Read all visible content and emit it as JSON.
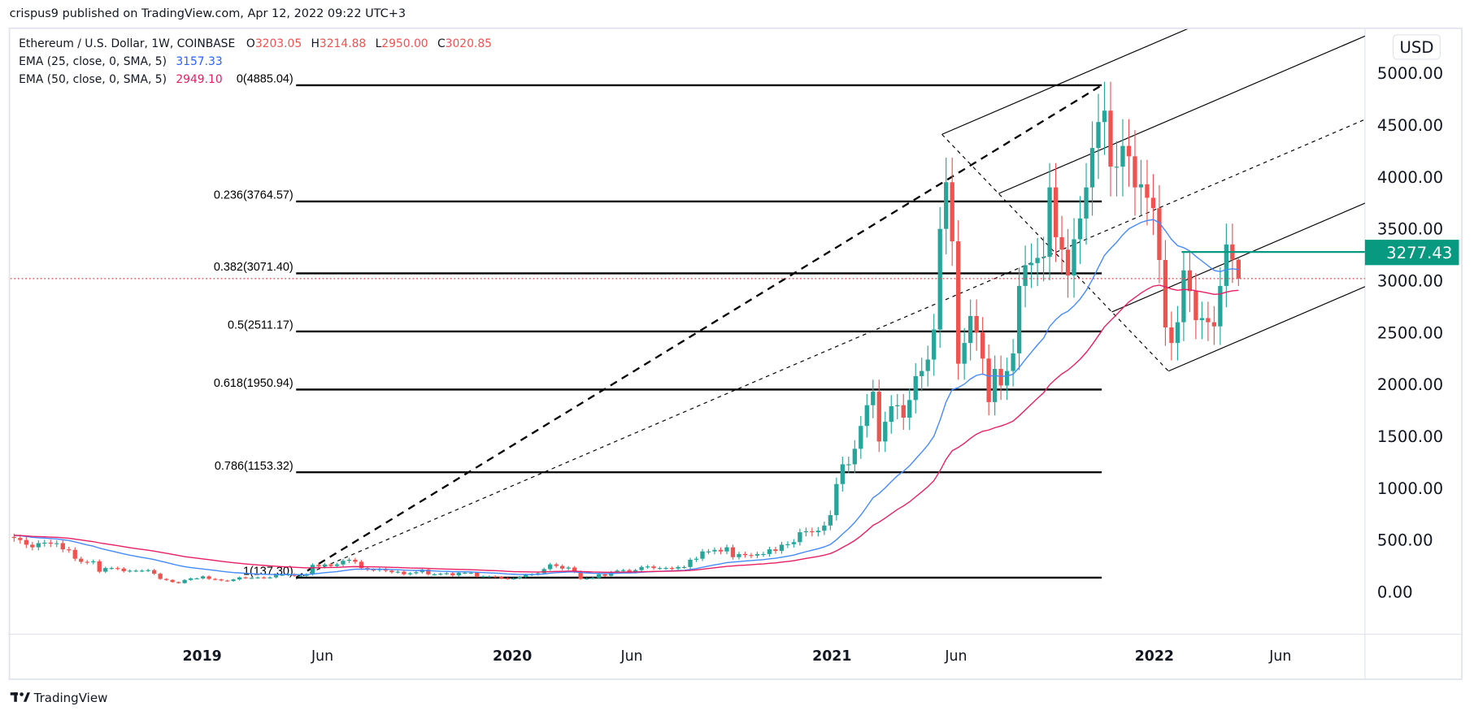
{
  "header": {
    "published": "crispus9 published on TradingView.com, Apr 12, 2022 09:22 UTC+3"
  },
  "legend": {
    "symbol": "Ethereum / U.S. Dollar, 1W, COINBASE",
    "o_label": "O",
    "o": "3203.05",
    "h_label": "H",
    "h": "3214.88",
    "l_label": "L",
    "l": "2950.00",
    "c_label": "C",
    "c": "3020.85",
    "ema25_label": "EMA (25, close, 0, SMA, 5)",
    "ema25_value": "3157.33",
    "ema50_label": "EMA (50, close, 0, SMA, 5)",
    "ema50_value": "2949.10"
  },
  "fib_levels": [
    {
      "label": "0(4885.04)",
      "price": 4885.04
    },
    {
      "label": "0.236(3764.57)",
      "price": 3764.57
    },
    {
      "label": "0.382(3071.40)",
      "price": 3071.4
    },
    {
      "label": "0.5(2511.17)",
      "price": 2511.17
    },
    {
      "label": "0.618(1950.94)",
      "price": 1950.94
    },
    {
      "label": "0.786(1153.32)",
      "price": 1153.32
    },
    {
      "label": "1(137.30)",
      "price": 137.3
    }
  ],
  "price_axis": {
    "currency": "USD",
    "ticks": [
      "5000.00",
      "4500.00",
      "4000.00",
      "3500.00",
      "3000.00",
      "2500.00",
      "2000.00",
      "1500.00",
      "1000.00",
      "500.00",
      "0.00"
    ],
    "highlight_label": "3277.43",
    "highlight_price": 3277.43,
    "last_price": 3020.85
  },
  "time_axis": {
    "labels": [
      {
        "text": "2019",
        "bold": true
      },
      {
        "text": "Jun",
        "bold": false
      },
      {
        "text": "2020",
        "bold": true
      },
      {
        "text": "Jun",
        "bold": false
      },
      {
        "text": "2021",
        "bold": true
      },
      {
        "text": "Jun",
        "bold": false
      },
      {
        "text": "2022",
        "bold": true
      },
      {
        "text": "Jun",
        "bold": false
      }
    ]
  },
  "footer": {
    "logo_text": "TradingView"
  },
  "colors": {
    "up": "#26a69a",
    "down": "#ef5350",
    "ema25": "#448aff",
    "ema50": "#e91e63",
    "highlight": "#089981",
    "last_price": "#f23645"
  },
  "chart_data": {
    "type": "candlestick",
    "interval": "1W",
    "x_start": "2018-05-14",
    "ylim": [
      -400,
      5500
    ],
    "last_candle": {
      "open": 3203.05,
      "high": 3214.88,
      "low": 2950.0,
      "close": 3020.85
    },
    "closes": [
      520,
      500,
      455,
      430,
      470,
      475,
      465,
      470,
      410,
      405,
      320,
      290,
      285,
      295,
      195,
      230,
      230,
      225,
      200,
      205,
      205,
      205,
      210,
      175,
      125,
      115,
      95,
      85,
      115,
      130,
      130,
      150,
      125,
      120,
      110,
      105,
      120,
      140,
      135,
      135,
      140,
      135,
      140,
      165,
      165,
      170,
      155,
      155,
      170,
      260,
      245,
      265,
      250,
      265,
      300,
      310,
      290,
      230,
      215,
      210,
      220,
      205,
      190,
      195,
      170,
      180,
      190,
      215,
      170,
      170,
      175,
      180,
      160,
      185,
      185,
      185,
      150,
      150,
      150,
      145,
      132,
      126,
      130,
      145,
      165,
      170,
      180,
      220,
      265,
      250,
      225,
      235,
      195,
      125,
      130,
      135,
      170,
      155,
      190,
      205,
      210,
      190,
      210,
      240,
      245,
      230,
      230,
      230,
      225,
      240,
      240,
      310,
      320,
      390,
      390,
      405,
      390,
      430,
      335,
      365,
      355,
      350,
      365,
      365,
      410,
      395,
      455,
      460,
      480,
      575,
      585,
      575,
      590,
      640,
      740,
      1040,
      1230,
      1230,
      1380,
      1600,
      1800,
      1930,
      1450,
      1640,
      1790,
      1800,
      1680,
      1850,
      2080,
      2130,
      2240,
      2530,
      3500,
      3950,
      3380,
      2200,
      2400,
      2660,
      2500,
      2250,
      1830,
      2150,
      1990,
      2130,
      2300,
      2950,
      3150,
      3170,
      3220,
      3230,
      3900,
      3420,
      3300,
      3050,
      3400,
      3600,
      3900,
      4280,
      4530,
      4640,
      4100,
      4100,
      4300,
      4200,
      3900,
      3930,
      3800,
      3700,
      3200,
      2550,
      2400,
      2600,
      3100,
      2900,
      2620,
      2640,
      2600,
      2560,
      2950,
      3350,
      3203.05,
      3020.85
    ]
  }
}
